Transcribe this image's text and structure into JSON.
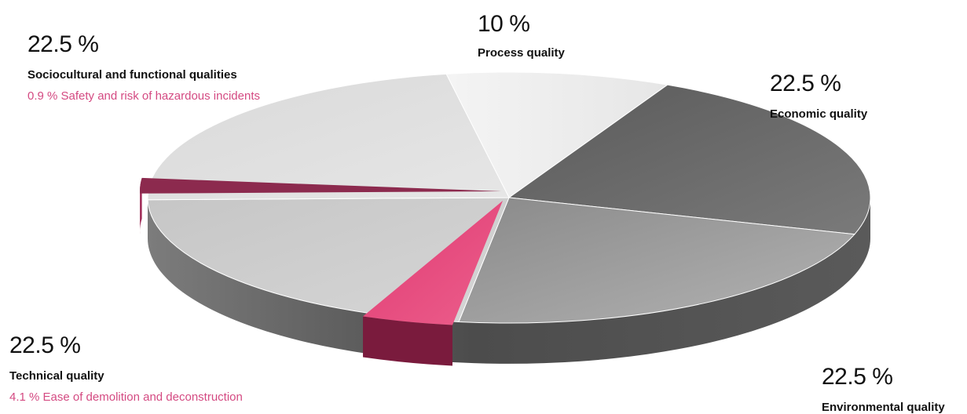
{
  "chart_data": {
    "type": "pie",
    "title": "",
    "slices": [
      {
        "name": "Process quality",
        "value": 10,
        "label": "10 %",
        "color": "#ebebeb"
      },
      {
        "name": "Economic quality",
        "value": 22.5,
        "label": "22.5 %",
        "color": "#6a6a6a"
      },
      {
        "name": "Environmental quality",
        "value": 22.5,
        "label": "22.5 %",
        "color": "#959595"
      },
      {
        "name": "Technical quality",
        "value": 22.5,
        "label": "22.5 %",
        "color": "#bdbdbd",
        "highlight": {
          "name": "Ease of demolition and deconstruction",
          "value": 4.1,
          "label": "4.1 %",
          "color": "#e3457a"
        }
      },
      {
        "name": "Sociocultural and functional qualities",
        "value": 22.5,
        "label": "22.5 %",
        "color": "#dedede",
        "highlight": {
          "name": "Safety and risk of hazardous incidents",
          "value": 0.9,
          "label": "0.9 %",
          "color": "#d43e73"
        }
      }
    ],
    "legend": "none",
    "grid": false
  },
  "labels": {
    "socio": {
      "pct": "22.5 %",
      "name": "Sociocultural and functional qualities",
      "sub": "0.9 % Safety and risk of hazardous incidents"
    },
    "process": {
      "pct": "10 %",
      "name": "Process quality"
    },
    "econ": {
      "pct": "22.5 %",
      "name": "Economic quality"
    },
    "tech": {
      "pct": "22.5 %",
      "name": "Technical quality",
      "sub": "4.1 % Ease of demolition and deconstruction"
    },
    "env": {
      "pct": "22.5 %",
      "name": "Environmental quality"
    }
  }
}
